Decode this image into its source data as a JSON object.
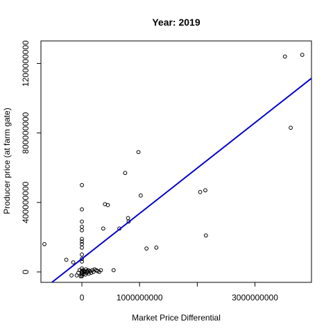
{
  "chart_data": {
    "type": "scatter",
    "title": "Year: 2019",
    "xlabel": "Market Price Differential",
    "ylabel": "Producer price (at farm gate)",
    "xlim": [
      -710000000,
      3980000000
    ],
    "ylim": [
      -60000000,
      1330000000
    ],
    "x_ticks": [
      0,
      1000000000,
      2000000000,
      3000000000
    ],
    "x_tick_labels": [
      "0",
      "1000000000",
      "",
      "3000000000"
    ],
    "y_ticks": [
      0,
      400000000,
      800000000,
      1200000000
    ],
    "y_tick_labels": [
      "0",
      "400000000",
      "800000000",
      "1200000000"
    ],
    "grid": false,
    "legend": "none",
    "point_color": "#000000",
    "line_color": "#0000cc",
    "regression_line": {
      "x": [
        -520000000,
        3980000000
      ],
      "y": [
        -60000000,
        1115000000
      ]
    },
    "points": [
      [
        -650000000,
        160000000
      ],
      [
        -270000000,
        70000000
      ],
      [
        -150000000,
        55000000
      ],
      [
        -180000000,
        -20000000
      ],
      [
        -90000000,
        -20000000
      ],
      [
        -40000000,
        10000000
      ],
      [
        -60000000,
        -5000000
      ],
      [
        -20000000,
        -25000000
      ],
      [
        0,
        500000000
      ],
      [
        0,
        360000000
      ],
      [
        0,
        290000000
      ],
      [
        0,
        260000000
      ],
      [
        0,
        240000000
      ],
      [
        0,
        190000000
      ],
      [
        0,
        175000000
      ],
      [
        0,
        160000000
      ],
      [
        0,
        140000000
      ],
      [
        0,
        100000000
      ],
      [
        0,
        75000000
      ],
      [
        0,
        60000000
      ],
      [
        0,
        20000000
      ],
      [
        0,
        5000000
      ],
      [
        0,
        -5000000
      ],
      [
        0,
        -15000000
      ],
      [
        0,
        -25000000
      ],
      [
        10000000,
        0
      ],
      [
        20000000,
        10000000
      ],
      [
        30000000,
        -10000000
      ],
      [
        40000000,
        5000000
      ],
      [
        50000000,
        0
      ],
      [
        60000000,
        -15000000
      ],
      [
        70000000,
        15000000
      ],
      [
        80000000,
        -5000000
      ],
      [
        90000000,
        5000000
      ],
      [
        100000000,
        0
      ],
      [
        110000000,
        10000000
      ],
      [
        120000000,
        -10000000
      ],
      [
        140000000,
        5000000
      ],
      [
        160000000,
        -5000000
      ],
      [
        180000000,
        10000000
      ],
      [
        200000000,
        0
      ],
      [
        220000000,
        15000000
      ],
      [
        250000000,
        10000000
      ],
      [
        270000000,
        5000000
      ],
      [
        300000000,
        0
      ],
      [
        330000000,
        10000000
      ],
      [
        370000000,
        250000000
      ],
      [
        400000000,
        390000000
      ],
      [
        450000000,
        385000000
      ],
      [
        550000000,
        10000000
      ],
      [
        650000000,
        250000000
      ],
      [
        750000000,
        570000000
      ],
      [
        800000000,
        310000000
      ],
      [
        810000000,
        290000000
      ],
      [
        980000000,
        690000000
      ],
      [
        1020000000,
        440000000
      ],
      [
        1120000000,
        135000000
      ],
      [
        1290000000,
        140000000
      ],
      [
        2050000000,
        460000000
      ],
      [
        2140000000,
        470000000
      ],
      [
        2150000000,
        210000000
      ],
      [
        3520000000,
        1240000000
      ],
      [
        3620000000,
        830000000
      ],
      [
        3820000000,
        1250000000
      ]
    ]
  }
}
